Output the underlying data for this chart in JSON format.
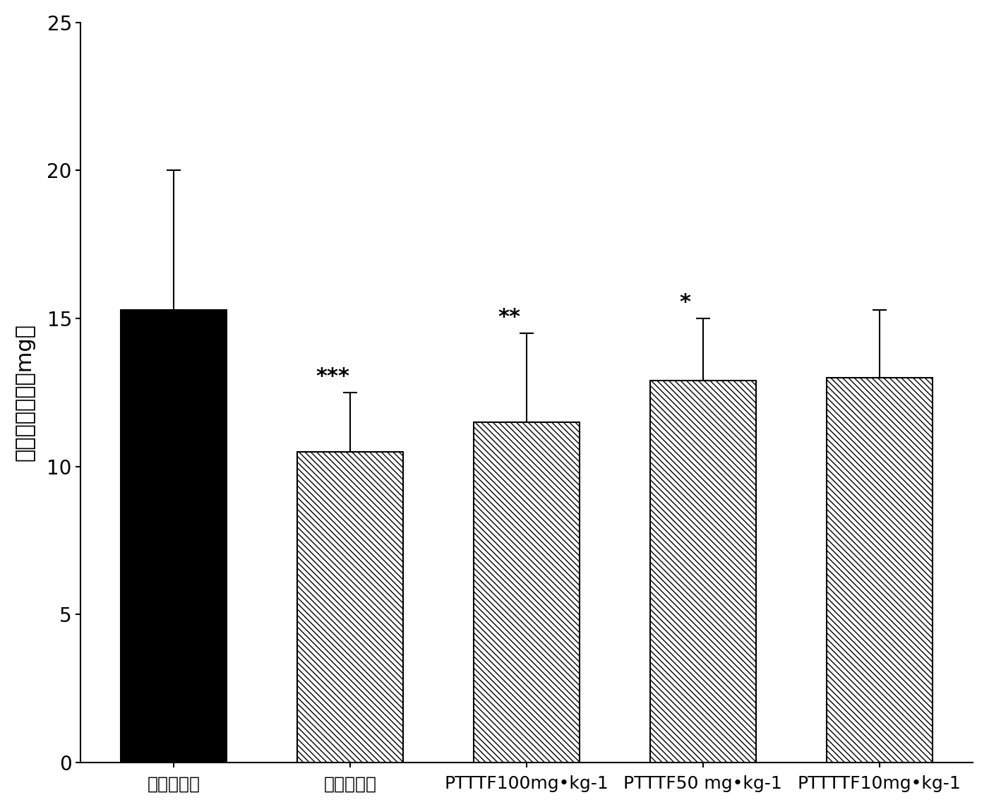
{
  "categories": [
    "阴性对照组",
    "地塞米松组",
    "PTTTF100mg•kg-1",
    "PTTTF50 mg•kg-1",
    "PTTTTF10mg•kg-1"
  ],
  "values": [
    15.3,
    10.5,
    11.5,
    12.9,
    13.0
  ],
  "errors": [
    4.7,
    2.0,
    3.0,
    2.1,
    2.3
  ],
  "significance": [
    "",
    "***",
    "**",
    "*",
    ""
  ],
  "ylabel": "小鼠耳肿胀度（mg）",
  "ylim": [
    0,
    25
  ],
  "yticks": [
    0,
    5,
    10,
    15,
    20,
    25
  ],
  "bar_width": 0.6,
  "background_color": "#ffffff",
  "font_size_ticks": 20,
  "font_size_ylabel": 22,
  "font_size_significance": 22,
  "font_size_xticklabels": 18
}
